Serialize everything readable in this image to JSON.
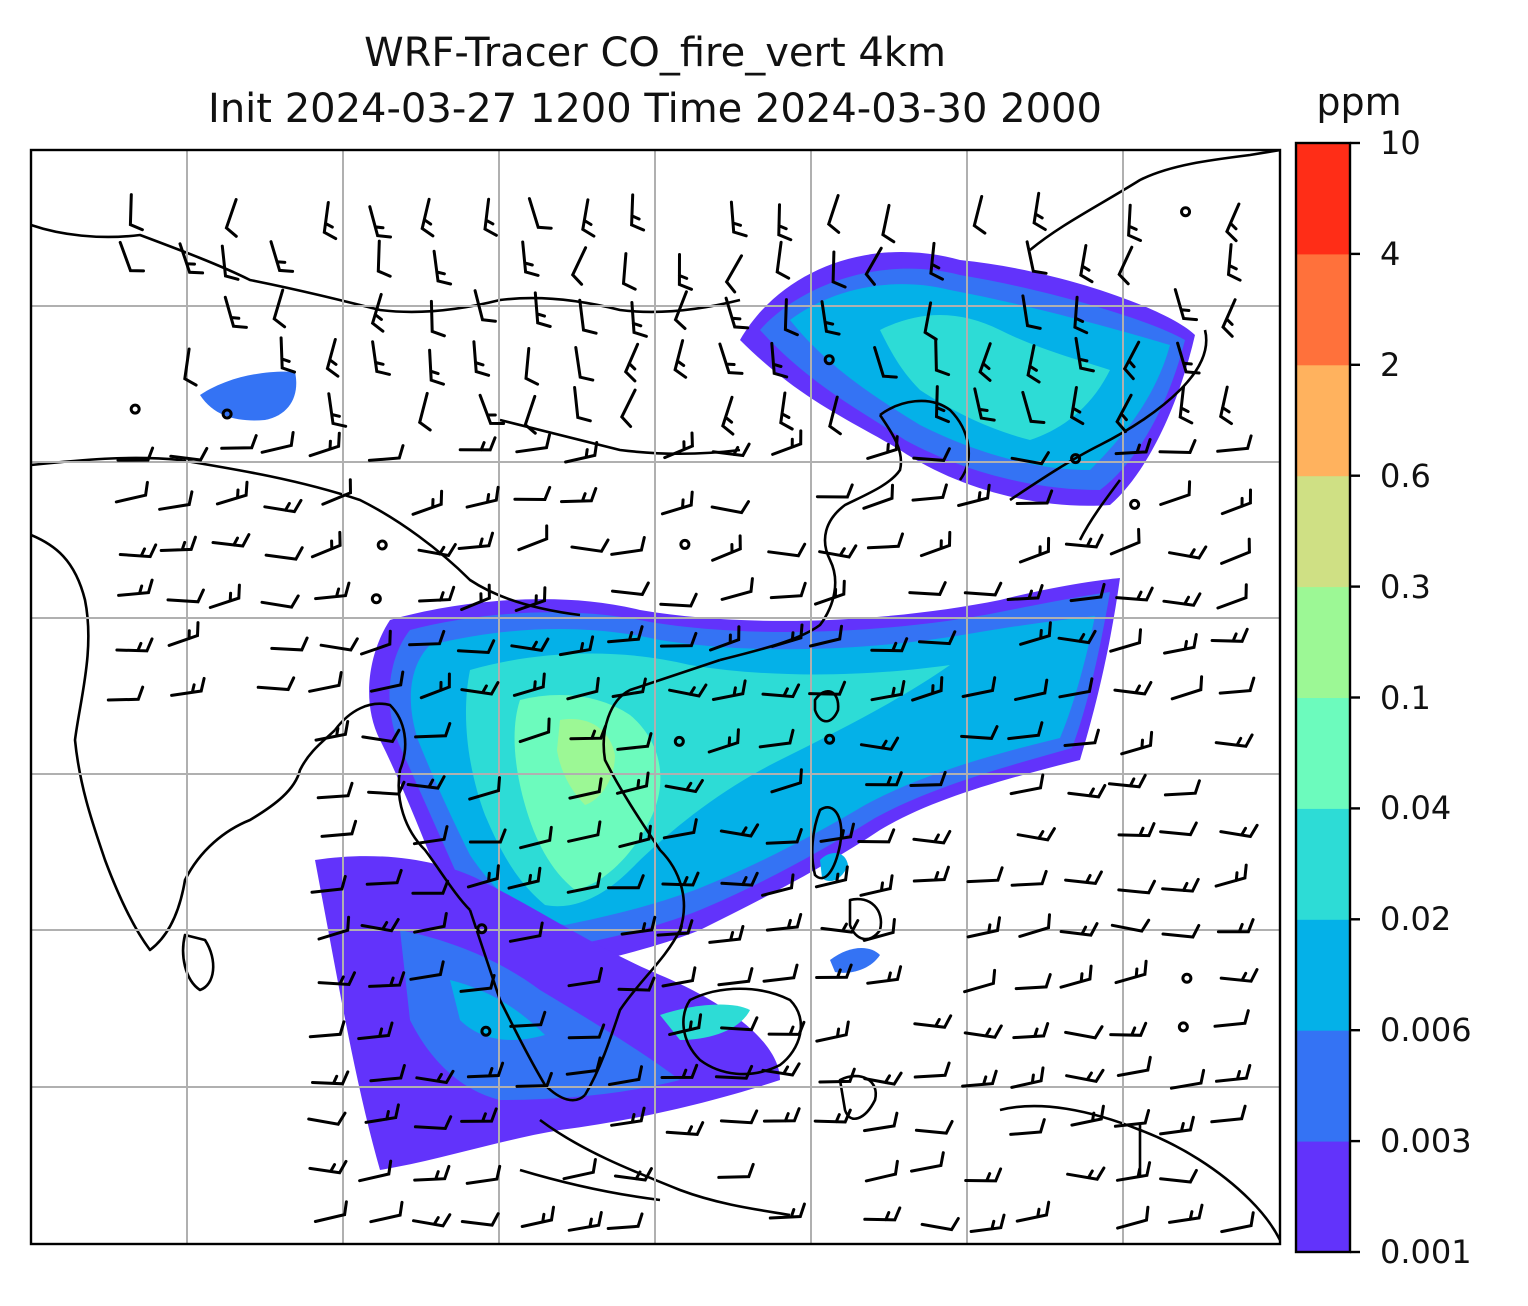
{
  "title_line1": "WRF-Tracer CO_fire_vert 4km",
  "title_line2": "Init 2024-03-27 1200 Time 2024-03-30 2000",
  "colorbar": {
    "unit": "ppm",
    "levels": [
      "0.001",
      "0.003",
      "0.006",
      "0.02",
      "0.04",
      "0.1",
      "0.3",
      "0.6",
      "2",
      "4",
      "10"
    ],
    "colors": [
      "#6233fb",
      "#3473f4",
      "#04b1e8",
      "#2ddcd6",
      "#6cfbbd",
      "#9cf895",
      "#cfe084",
      "#ffb25e",
      "#ff713b",
      "#ff2d17"
    ]
  },
  "map": {
    "background": "#ffffff",
    "gridlines": "on",
    "wind_barbs": "on",
    "coastlines": "on"
  }
}
